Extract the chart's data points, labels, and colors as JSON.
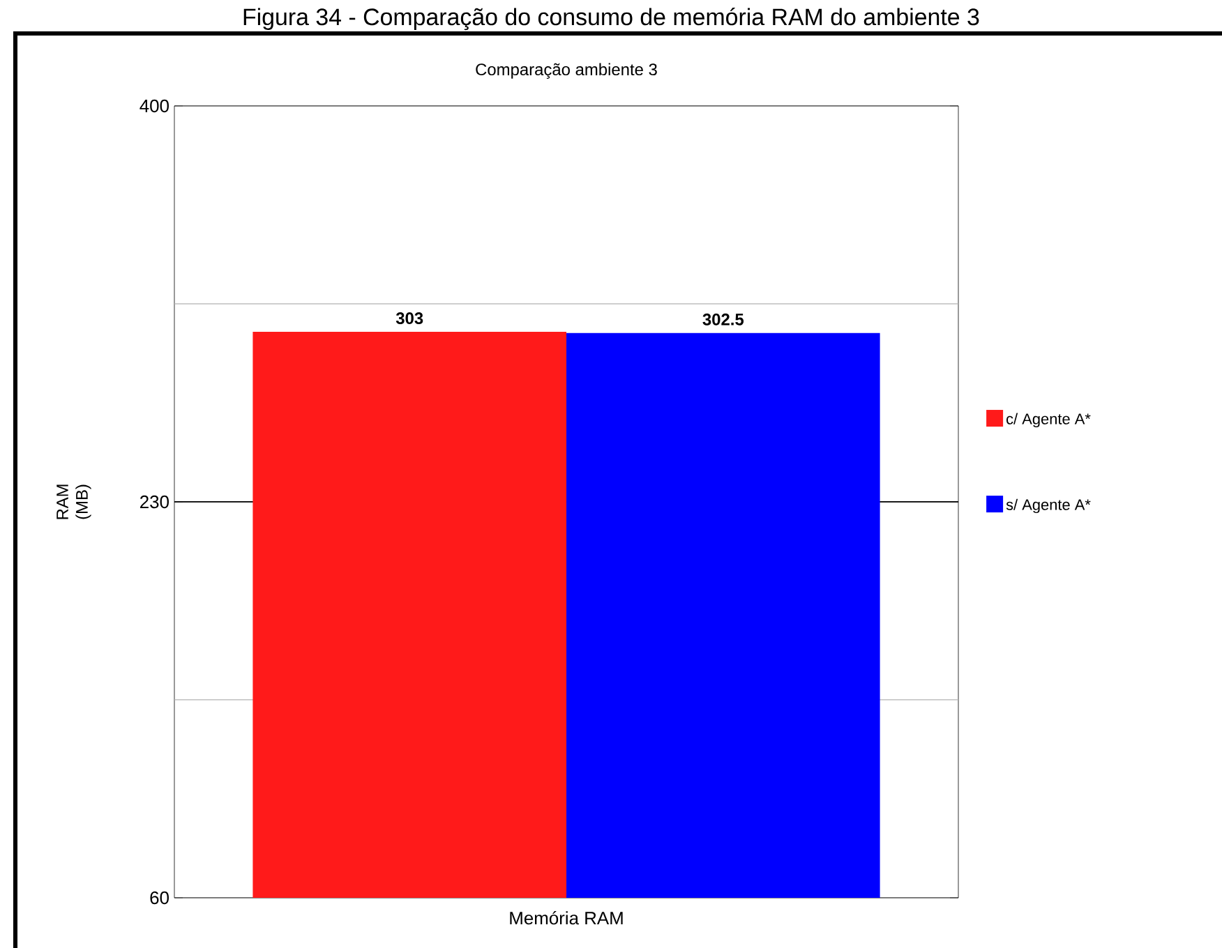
{
  "chart_data": {
    "type": "bar",
    "title": "Comparação ambiente 3",
    "annotations": [
      "Figura 34 - Comparação do consumo de memória RAM do ambiente 3"
    ],
    "categories": [
      "Memória RAM"
    ],
    "ylabel": "RAM (MB)",
    "series": [
      {
        "name": "c/ Agente A*",
        "color": "#ff1a1a",
        "values": [
          303
        ]
      },
      {
        "name": "s/ Agente A*",
        "color": "#0000ff",
        "values": [
          302.5
        ]
      }
    ],
    "ylim": [
      60,
      400
    ],
    "yticks": [
      60,
      {
        "value": 145,
        "label": null
      },
      230,
      {
        "value": 315,
        "label": null
      },
      400
    ],
    "grid": "y",
    "ref_lines": [
      {
        "axis": "y",
        "value": 230,
        "color": "#000000"
      }
    ],
    "legend": "right",
    "data_labels": true
  }
}
